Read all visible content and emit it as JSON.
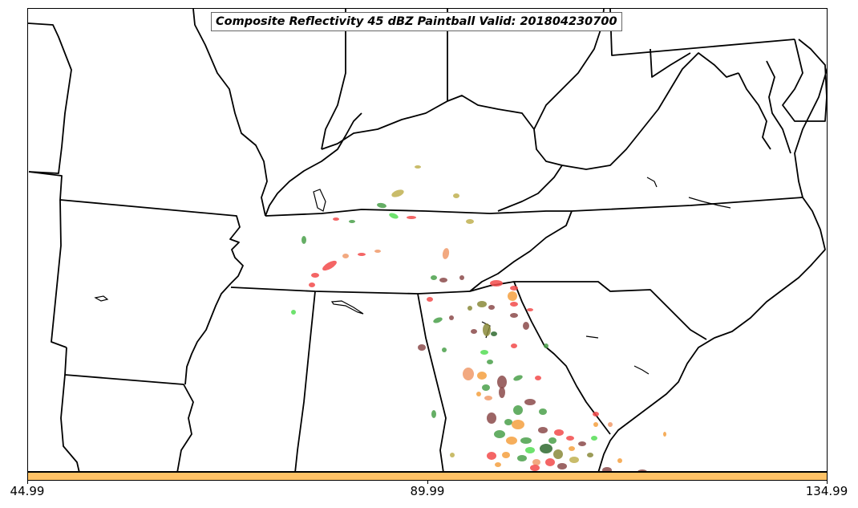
{
  "title": "Composite Reflectivity 45 dBZ Paintball Valid: 201804230700",
  "colorbar": {
    "color": "#ffc266",
    "ticks": [
      "44.99",
      "89.99",
      "134.99"
    ]
  },
  "colors": {
    "red": "#f24a4a",
    "green": "#4aa04a",
    "lime": "#55dd55",
    "orange": "#f5a040",
    "olive": "#8a8a3a",
    "khaki": "#c0b050",
    "maroon": "#8b4a4a",
    "darkgreen": "#2f6a2f",
    "salmon": "#f09a6a"
  }
}
